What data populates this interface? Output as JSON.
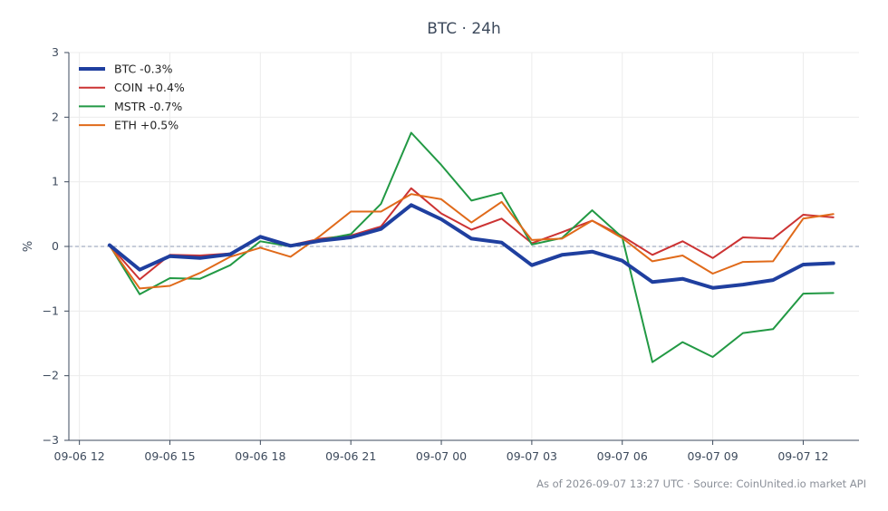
{
  "chart_data": {
    "type": "line",
    "title": "BTC · 24h",
    "ylabel": "%",
    "ylim": [
      -3,
      3
    ],
    "yticks": [
      3,
      2,
      1,
      0,
      -1,
      -2,
      -3
    ],
    "ytick_labels": [
      "3",
      "2",
      "1",
      "0",
      "−1",
      "−2",
      "−3"
    ],
    "xlim": [
      -0.35,
      25.85
    ],
    "xticks": [
      {
        "x": 0,
        "label": "09-06 12"
      },
      {
        "x": 3,
        "label": "09-06 15"
      },
      {
        "x": 6,
        "label": "09-06 18"
      },
      {
        "x": 9,
        "label": "09-06 21"
      },
      {
        "x": 12,
        "label": "09-07 00"
      },
      {
        "x": 15,
        "label": "09-07 03"
      },
      {
        "x": 18,
        "label": "09-07 06"
      },
      {
        "x": 21,
        "label": "09-07 09"
      },
      {
        "x": 24,
        "label": "09-07 12"
      }
    ],
    "x": [
      1,
      2,
      3,
      4,
      5,
      6,
      7,
      8,
      9,
      10,
      11,
      12,
      13,
      14,
      15,
      16,
      17,
      18,
      19,
      20,
      21,
      22,
      23,
      24,
      25
    ],
    "grid": true,
    "zero_line": true,
    "legend_position": "top-left",
    "series": [
      {
        "name": "BTC -0.3%",
        "color": "#1f3f9f",
        "width": 4,
        "values": [
          0.02,
          -0.36,
          -0.15,
          -0.18,
          -0.12,
          0.15,
          0.01,
          0.09,
          0.14,
          0.27,
          0.64,
          0.42,
          0.12,
          0.06,
          -0.29,
          -0.13,
          -0.08,
          -0.22,
          -0.55,
          -0.5,
          -0.64,
          -0.59,
          -0.52,
          -0.28,
          -0.26
        ]
      },
      {
        "name": "COIN +0.4%",
        "color": "#cc3333",
        "width": 2,
        "values": [
          0.02,
          -0.51,
          -0.13,
          -0.14,
          -0.11,
          0.14,
          0.02,
          0.12,
          0.17,
          0.31,
          0.9,
          0.51,
          0.26,
          0.43,
          0.05,
          0.22,
          0.4,
          0.16,
          -0.13,
          0.08,
          -0.18,
          0.14,
          0.12,
          0.49,
          0.45
        ]
      },
      {
        "name": "MSTR -0.7%",
        "color": "#229944",
        "width": 2,
        "values": [
          0.02,
          -0.74,
          -0.49,
          -0.5,
          -0.29,
          0.08,
          0.0,
          0.1,
          0.19,
          0.66,
          1.76,
          1.26,
          0.71,
          0.83,
          0.03,
          0.13,
          0.56,
          0.14,
          -1.79,
          -1.48,
          -1.71,
          -1.34,
          -1.28,
          -0.73,
          -0.72
        ]
      },
      {
        "name": "ETH +0.5%",
        "color": "#e06a1a",
        "width": 2,
        "values": [
          0.01,
          -0.65,
          -0.61,
          -0.41,
          -0.16,
          -0.02,
          -0.16,
          0.17,
          0.54,
          0.54,
          0.81,
          0.73,
          0.37,
          0.69,
          0.1,
          0.12,
          0.4,
          0.13,
          -0.23,
          -0.14,
          -0.42,
          -0.24,
          -0.23,
          0.43,
          0.5
        ]
      }
    ],
    "footer": "As of 2026-09-07 13:27 UTC · Source: CoinUnited.io market API"
  }
}
